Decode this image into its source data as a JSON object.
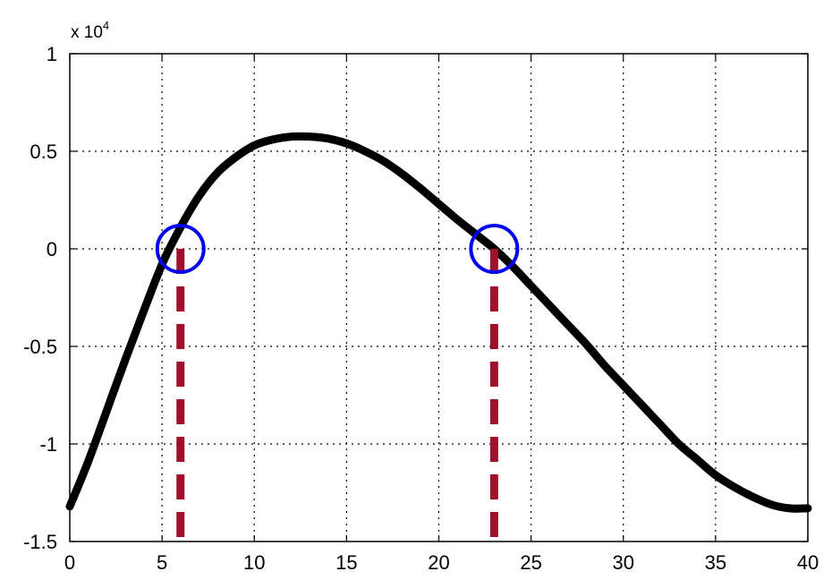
{
  "chart_data": {
    "type": "line",
    "title": "",
    "xlabel": "",
    "ylabel": "",
    "y_multiplier": "x 10",
    "y_multiplier_exponent": "4",
    "xlim": [
      0,
      40
    ],
    "ylim": [
      -1.5,
      1
    ],
    "xticks": [
      0,
      5,
      10,
      15,
      20,
      25,
      30,
      35,
      40
    ],
    "xtick_labels": [
      "0",
      "5",
      "10",
      "15",
      "20",
      "25",
      "30",
      "35",
      "40"
    ],
    "yticks": [
      1,
      0.5,
      0,
      -0.5,
      -1,
      -1.5
    ],
    "ytick_labels": [
      "1",
      "0.5",
      "0",
      "-0.5",
      "-1",
      "-1.5"
    ],
    "grid": true,
    "grid_style": "dotted",
    "series": [
      {
        "color": "#000000",
        "x": [
          0,
          1,
          2,
          3,
          4,
          5,
          6,
          7,
          8,
          9,
          10,
          11,
          12,
          13,
          14,
          15,
          16,
          17,
          18,
          19,
          20,
          21,
          22,
          23,
          24,
          25,
          26,
          27,
          28,
          29,
          30,
          31,
          32,
          33,
          34,
          35,
          36,
          37,
          38,
          39,
          40
        ],
        "y": [
          -1.32,
          -1.09,
          -0.83,
          -0.57,
          -0.32,
          -0.08,
          0.11,
          0.27,
          0.39,
          0.47,
          0.53,
          0.56,
          0.575,
          0.575,
          0.565,
          0.54,
          0.5,
          0.45,
          0.385,
          0.31,
          0.23,
          0.15,
          0.075,
          0.0,
          -0.09,
          -0.19,
          -0.29,
          -0.39,
          -0.49,
          -0.6,
          -0.7,
          -0.8,
          -0.9,
          -1.0,
          -1.08,
          -1.16,
          -1.22,
          -1.27,
          -1.31,
          -1.33,
          -1.33
        ]
      }
    ],
    "annotations": [
      {
        "kind": "circle",
        "x": 6,
        "y": 0,
        "color": "#0000ee"
      },
      {
        "kind": "circle",
        "x": 23,
        "y": 0,
        "color": "#0000ee"
      },
      {
        "kind": "vline-dashed",
        "x": 6,
        "y_from": 0,
        "y_to": -1.5,
        "color": "#a0102a"
      },
      {
        "kind": "vline-dashed",
        "x": 23,
        "y_from": 0,
        "y_to": -1.5,
        "color": "#a0102a"
      }
    ]
  }
}
